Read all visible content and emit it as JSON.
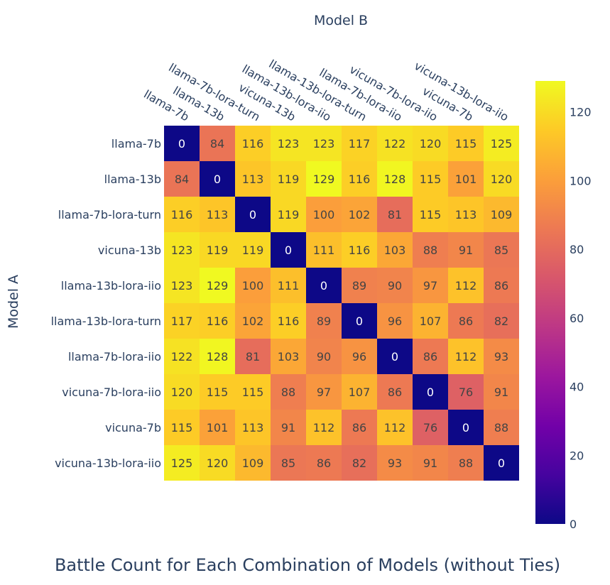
{
  "chart_data": {
    "type": "heatmap",
    "title": "Battle Count for Each Combination of Models (without Ties)",
    "xlabel": "Model B",
    "ylabel": "Model A",
    "x_categories": [
      "llama-7b",
      "llama-13b",
      "llama-7b-lora-turn",
      "vicuna-13b",
      "llama-13b-lora-iio",
      "llama-13b-lora-turn",
      "llama-7b-lora-iio",
      "vicuna-7b-lora-iio",
      "vicuna-7b",
      "vicuna-13b-lora-iio"
    ],
    "y_categories": [
      "llama-7b",
      "llama-13b",
      "llama-7b-lora-turn",
      "vicuna-13b",
      "llama-13b-lora-iio",
      "llama-13b-lora-turn",
      "llama-7b-lora-iio",
      "vicuna-7b-lora-iio",
      "vicuna-7b",
      "vicuna-13b-lora-iio"
    ],
    "values": [
      [
        0,
        84,
        116,
        123,
        123,
        117,
        122,
        120,
        115,
        125
      ],
      [
        84,
        0,
        113,
        119,
        129,
        116,
        128,
        115,
        101,
        120
      ],
      [
        116,
        113,
        0,
        119,
        100,
        102,
        81,
        115,
        113,
        109
      ],
      [
        123,
        119,
        119,
        0,
        111,
        116,
        103,
        88,
        91,
        85
      ],
      [
        123,
        129,
        100,
        111,
        0,
        89,
        90,
        97,
        112,
        86
      ],
      [
        117,
        116,
        102,
        116,
        89,
        0,
        96,
        107,
        86,
        82
      ],
      [
        122,
        128,
        81,
        103,
        90,
        96,
        0,
        86,
        112,
        93
      ],
      [
        120,
        115,
        115,
        88,
        97,
        107,
        86,
        0,
        76,
        91
      ],
      [
        115,
        101,
        113,
        91,
        112,
        86,
        112,
        76,
        0,
        88
      ],
      [
        125,
        120,
        109,
        85,
        86,
        82,
        93,
        91,
        88,
        0
      ]
    ],
    "colorscale": "plasma",
    "zmin": 0,
    "zmax": 129,
    "colorbar_ticks": [
      0,
      20,
      40,
      60,
      80,
      100,
      120
    ],
    "x_axis_side": "top",
    "grid": false
  }
}
